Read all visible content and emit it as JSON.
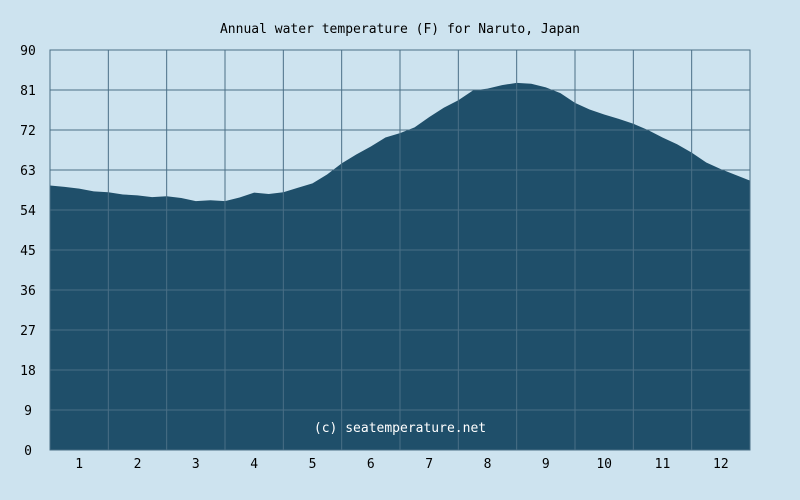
{
  "chart_data": {
    "type": "area",
    "title": "Annual water temperature (F) for Naruto, Japan",
    "xlabel": "",
    "ylabel": "",
    "x_ticks": [
      "1",
      "2",
      "3",
      "4",
      "5",
      "6",
      "7",
      "8",
      "9",
      "10",
      "11",
      "12"
    ],
    "y_ticks": [
      "0",
      "9",
      "18",
      "27",
      "36",
      "45",
      "54",
      "63",
      "72",
      "81",
      "90"
    ],
    "xlim": [
      0.5,
      12.5
    ],
    "ylim": [
      0,
      90
    ],
    "grid": true,
    "credit": "(c) seatemperature.net",
    "series": [
      {
        "x": [
          0.5,
          0.75,
          1.0,
          1.25,
          1.5,
          1.75,
          2.0,
          2.25,
          2.5,
          2.75,
          3.0,
          3.25,
          3.5,
          3.75,
          4.0,
          4.25,
          4.5,
          4.75,
          5.0,
          5.25,
          5.5,
          5.75,
          6.0,
          6.25,
          6.5,
          6.75,
          7.0,
          7.25,
          7.5,
          7.75,
          8.0,
          8.25,
          8.5,
          8.75,
          9.0,
          9.25,
          9.5,
          9.75,
          10.0,
          10.25,
          10.5,
          10.75,
          11.0,
          11.25,
          11.5,
          11.75,
          12.0,
          12.25,
          12.5
        ],
        "values": [
          59.5,
          59.2,
          58.8,
          58.2,
          58.0,
          57.5,
          57.3,
          56.9,
          57.1,
          56.7,
          56.0,
          56.2,
          56.0,
          56.8,
          57.9,
          57.6,
          58.0,
          59.0,
          60.0,
          62.0,
          64.5,
          66.5,
          68.3,
          70.3,
          71.3,
          72.6,
          74.9,
          77.0,
          78.7,
          80.9,
          81.3,
          82.1,
          82.6,
          82.4,
          81.6,
          80.3,
          78.1,
          76.6,
          75.5,
          74.5,
          73.4,
          72.0,
          70.3,
          68.8,
          66.9,
          64.7,
          63.2,
          61.9,
          60.6
        ],
        "color": "#1f4f6a"
      }
    ],
    "colors": {
      "background": "#cde3ef",
      "plot_background": "#cde3ef",
      "fill": "#1f4f6a",
      "grid": "#4a6f86",
      "credit_text": "#ffffff"
    }
  }
}
